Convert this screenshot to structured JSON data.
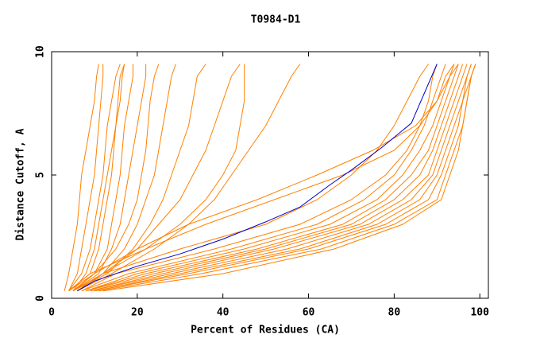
{
  "chart_data": {
    "type": "line",
    "title": "T0984-D1",
    "xlabel": "Percent of Residues (CA)",
    "ylabel": "Distance Cutoff, A",
    "xlim": [
      0,
      102
    ],
    "ylim": [
      0,
      10
    ],
    "xticks": [
      0,
      20,
      40,
      60,
      80,
      100
    ],
    "yticks": [
      0,
      5,
      10
    ],
    "series": [
      {
        "color": "#ff8000",
        "x": [
          3,
          4,
          5,
          6,
          6.5,
          7,
          8,
          9,
          10,
          10.5,
          11
        ],
        "values": [
          0.3,
          1,
          2,
          3,
          4,
          5,
          6,
          7,
          8,
          9,
          9.5
        ]
      },
      {
        "color": "#ff8000",
        "x": [
          4,
          6,
          7,
          8,
          9,
          10,
          10.5,
          11,
          11.5,
          12,
          12
        ],
        "values": [
          0.3,
          1,
          2,
          3,
          4,
          5,
          6,
          7,
          8,
          9,
          9.5
        ]
      },
      {
        "color": "#ff8000",
        "x": [
          4,
          7,
          9,
          10,
          11,
          12,
          12.5,
          13,
          14,
          15,
          16
        ],
        "values": [
          0.3,
          1,
          2,
          3,
          4,
          5,
          6,
          7,
          8,
          9,
          9.5
        ]
      },
      {
        "color": "#ff8000",
        "x": [
          5,
          8,
          10,
          11,
          12,
          13,
          14,
          15,
          15.5,
          16,
          17
        ],
        "values": [
          0.3,
          1,
          2,
          3,
          4,
          5,
          6,
          7,
          8,
          9,
          9.5
        ]
      },
      {
        "color": "#ff8000",
        "x": [
          4,
          9,
          11,
          12,
          13,
          14,
          14.5,
          15,
          16,
          16.5,
          17
        ],
        "values": [
          0.3,
          1,
          2,
          3,
          4,
          5,
          6,
          7,
          8,
          9,
          9.5
        ]
      },
      {
        "color": "#ff8000",
        "x": [
          5,
          10,
          13,
          14,
          15,
          16,
          16.5,
          17,
          18,
          19,
          19
        ],
        "values": [
          0.3,
          1,
          2,
          3,
          4,
          5,
          6,
          7,
          8,
          9,
          9.5
        ]
      },
      {
        "color": "#ff8000",
        "x": [
          5,
          11,
          14,
          16,
          17,
          18,
          19,
          20,
          21,
          22,
          22
        ],
        "values": [
          0.3,
          1,
          2,
          3,
          4,
          5,
          6,
          7,
          8,
          9,
          9.5
        ]
      },
      {
        "color": "#ff8000",
        "x": [
          5,
          10,
          15,
          18,
          20,
          21,
          22,
          22.5,
          23,
          24,
          25
        ],
        "values": [
          0.3,
          1,
          2,
          3,
          4,
          5,
          6,
          7,
          8,
          9,
          9.5
        ]
      },
      {
        "color": "#ff8000",
        "x": [
          5,
          12,
          17,
          20,
          22,
          24,
          25,
          26,
          27,
          28,
          29
        ],
        "values": [
          0.3,
          1,
          2,
          3,
          4,
          5,
          6,
          7,
          8,
          9,
          9.5
        ]
      },
      {
        "color": "#ff8000",
        "x": [
          5,
          13,
          19,
          23,
          26,
          28,
          30,
          32,
          33,
          34,
          36
        ],
        "values": [
          0.3,
          1,
          2,
          3,
          4,
          5,
          6,
          7,
          8,
          9,
          9.5
        ]
      },
      {
        "color": "#ff8000",
        "x": [
          6,
          12,
          20,
          25,
          30,
          33,
          36,
          38,
          40,
          42,
          44
        ],
        "values": [
          0.3,
          1,
          2,
          3,
          4,
          5,
          6,
          7,
          8,
          9,
          9.5
        ]
      },
      {
        "color": "#ff8000",
        "x": [
          6,
          12,
          22,
          30,
          36,
          40,
          43,
          44,
          45,
          45,
          45
        ],
        "values": [
          0.3,
          1,
          2,
          3,
          4,
          5,
          6,
          7,
          8,
          9,
          9.5
        ]
      },
      {
        "color": "#ff8000",
        "x": [
          6,
          14,
          24,
          32,
          38,
          42,
          46,
          50,
          53,
          56,
          58
        ],
        "values": [
          0.3,
          1,
          2,
          3,
          4,
          5,
          6,
          7,
          8,
          9,
          9.5
        ]
      },
      {
        "color": "#ff8000",
        "x": [
          4,
          10,
          20,
          32,
          48,
          62,
          75,
          85,
          90,
          93,
          95
        ],
        "values": [
          0.3,
          1,
          2,
          3,
          4,
          5,
          6,
          7,
          8,
          9,
          9.5
        ]
      },
      {
        "color": "#ff8000",
        "x": [
          4,
          9,
          22,
          36,
          52,
          68,
          80,
          86,
          90,
          92,
          94
        ],
        "values": [
          0.3,
          1,
          2,
          3,
          4,
          5,
          6,
          7,
          8,
          9,
          9.5
        ]
      },
      {
        "color": "#ff8000",
        "x": [
          6,
          12,
          30,
          50,
          62,
          70,
          76,
          80,
          83,
          86,
          88
        ],
        "values": [
          0.3,
          1,
          2,
          3,
          4,
          5,
          6,
          7,
          8,
          9,
          9.5
        ]
      },
      {
        "color": "#ff8000",
        "x": [
          7,
          15,
          38,
          58,
          70,
          78,
          83,
          86,
          88,
          89,
          90
        ],
        "values": [
          0.3,
          1,
          2,
          3,
          4,
          5,
          6,
          7,
          8,
          9,
          9.5
        ]
      },
      {
        "color": "#ff8000",
        "x": [
          7,
          18,
          42,
          62,
          73,
          80,
          84,
          87,
          89,
          91,
          92
        ],
        "values": [
          0.3,
          1,
          2,
          3,
          4,
          5,
          6,
          7,
          8,
          9,
          9.5
        ]
      },
      {
        "color": "#ff8000",
        "x": [
          8,
          20,
          45,
          65,
          76,
          82,
          86,
          89,
          91,
          93,
          94
        ],
        "values": [
          0.3,
          1,
          2,
          3,
          4,
          5,
          6,
          7,
          8,
          9,
          9.5
        ]
      },
      {
        "color": "#ff8000",
        "x": [
          8,
          22,
          48,
          68,
          78,
          84,
          88,
          90,
          92,
          94,
          95
        ],
        "values": [
          0.3,
          1,
          2,
          3,
          4,
          5,
          6,
          7,
          8,
          9,
          9.5
        ]
      },
      {
        "color": "#ff8000",
        "x": [
          8,
          24,
          50,
          70,
          80,
          86,
          89,
          91,
          93,
          95,
          96
        ],
        "values": [
          0.3,
          1,
          2,
          3,
          4,
          5,
          6,
          7,
          8,
          9,
          9.5
        ]
      },
      {
        "color": "#ff8000",
        "x": [
          9,
          26,
          52,
          72,
          82,
          88,
          90,
          92,
          94,
          96,
          97
        ],
        "values": [
          0.3,
          1,
          2,
          3,
          4,
          5,
          6,
          7,
          8,
          9,
          9.5
        ]
      },
      {
        "color": "#ff8000",
        "x": [
          9,
          28,
          55,
          74,
          84,
          89,
          91,
          93,
          95,
          97,
          98
        ],
        "values": [
          0.3,
          1,
          2,
          3,
          4,
          5,
          6,
          7,
          8,
          9,
          9.5
        ]
      },
      {
        "color": "#ff8000",
        "x": [
          10,
          30,
          58,
          76,
          86,
          90,
          92,
          94,
          96,
          97,
          98
        ],
        "values": [
          0.3,
          1,
          2,
          3,
          4,
          5,
          6,
          7,
          8,
          9,
          9.5
        ]
      },
      {
        "color": "#ff8000",
        "x": [
          10,
          32,
          60,
          78,
          88,
          91,
          93,
          95,
          96,
          98,
          99
        ],
        "values": [
          0.3,
          1,
          2,
          3,
          4,
          5,
          6,
          7,
          8,
          9,
          9.5
        ]
      },
      {
        "color": "#ff8000",
        "x": [
          11,
          35,
          63,
          80,
          90,
          92,
          94,
          96,
          97,
          98,
          99
        ],
        "values": [
          0.3,
          1,
          2,
          3,
          4,
          5,
          6,
          7,
          8,
          9,
          9.5
        ]
      },
      {
        "color": "#ff8000",
        "x": [
          12,
          40,
          66,
          82,
          91,
          93,
          95,
          96,
          97,
          98,
          99
        ],
        "values": [
          0.3,
          1,
          2,
          3,
          4,
          5,
          6,
          7,
          8,
          9,
          9.5
        ]
      },
      {
        "color": "#0000cc",
        "x": [
          6,
          10,
          20,
          30,
          40,
          50,
          58,
          65,
          70,
          77,
          84,
          90
        ],
        "values": [
          0.3,
          0.7,
          1.3,
          1.8,
          2.4,
          3.1,
          3.7,
          4.6,
          5.2,
          6.1,
          7.1,
          9.5
        ]
      }
    ]
  }
}
